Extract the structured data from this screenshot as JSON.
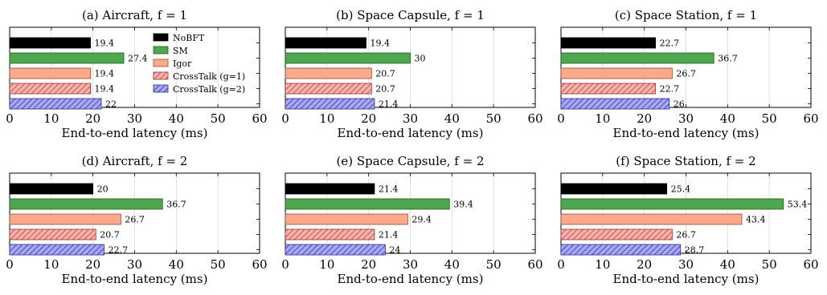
{
  "chart_data": {
    "type": "bar",
    "orientation": "horizontal",
    "xlim": [
      0,
      60
    ],
    "x_ticks": [
      "0",
      "10",
      "20",
      "30",
      "40",
      "50",
      "60"
    ],
    "xlabel": "End-to-end latency (ms)",
    "grid": "vertical",
    "legend": {
      "placement": "inside-top-right of panel (a)",
      "entries": [
        {
          "label": "NoBFT",
          "color": "#000000",
          "pattern": "solid"
        },
        {
          "label": "SM",
          "color": "#4ea64e",
          "pattern": "solid"
        },
        {
          "label": "Igor",
          "color": "#fba98c",
          "pattern": "solid"
        },
        {
          "label": "CrossTalk (g=1)",
          "color": "#f07a78",
          "pattern": "hatch"
        },
        {
          "label": "CrossTalk (g=2)",
          "color": "#7b79ee",
          "pattern": "hatch"
        }
      ]
    },
    "panels": [
      {
        "title": "(a) Aircraft, f = 1",
        "values": [
          19.4,
          27.4,
          19.4,
          19.4,
          22
        ],
        "labels": [
          "19.4",
          "27.4",
          "19.4",
          "19.4",
          "22"
        ]
      },
      {
        "title": "(b) Space Capsule, f = 1",
        "values": [
          19.4,
          30,
          20.7,
          20.7,
          21.4
        ],
        "labels": [
          "19.4",
          "30",
          "20.7",
          "20.7",
          "21.4"
        ]
      },
      {
        "title": "(c) Space Station, f = 1",
        "values": [
          22.7,
          36.7,
          26.7,
          22.7,
          26
        ],
        "labels": [
          "22.7",
          "36.7",
          "26.7",
          "22.7",
          "26"
        ]
      },
      {
        "title": "(d) Aircraft, f = 2",
        "values": [
          20,
          36.7,
          26.7,
          20.7,
          22.7
        ],
        "labels": [
          "20",
          "36.7",
          "26.7",
          "20.7",
          "22.7"
        ]
      },
      {
        "title": "(e) Space Capsule, f = 2",
        "values": [
          21.4,
          39.4,
          29.4,
          21.4,
          24
        ],
        "labels": [
          "21.4",
          "39.4",
          "29.4",
          "21.4",
          "24"
        ]
      },
      {
        "title": "(f) Space Station, f = 2",
        "values": [
          25.4,
          53.4,
          43.4,
          26.7,
          28.7
        ],
        "labels": [
          "25.4",
          "53.4",
          "43.4",
          "26.7",
          "28.7"
        ]
      }
    ]
  }
}
